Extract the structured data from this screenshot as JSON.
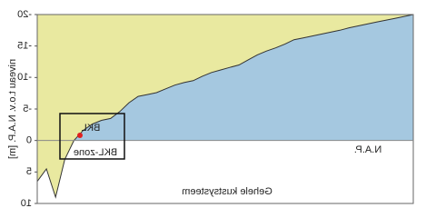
{
  "chart_data": {
    "type": "area",
    "ylabel": "niveau t.o.v. N.A.P. [m]",
    "xlabel": "Gehele kustsysteem",
    "reference_label": "N.A.P.",
    "box_label": "BKL",
    "zone_label": "BKL-zone",
    "ylim": [
      -20,
      10
    ],
    "yticks": [
      -20,
      -15,
      -10,
      -5,
      0,
      5,
      10
    ],
    "colors": {
      "above": "#e9e9a0",
      "below": "#a5c8e0"
    },
    "values": [
      -20,
      -19.7,
      -19.4,
      -19.1,
      -18.8,
      -18.5,
      -18.2,
      -17.9,
      -17.5,
      -17.2,
      -16.9,
      -16.6,
      -16.3,
      -16,
      -15.3,
      -14.7,
      -14.2,
      -13.6,
      -12.8,
      -12,
      -11.6,
      -11.2,
      -10.8,
      -10.2,
      -9.5,
      -9.2,
      -8.8,
      -8.2,
      -7.6,
      -7.3,
      -7,
      -6,
      -4.6,
      -3.5,
      -3.2,
      -2.6,
      -1.6,
      0,
      3,
      9,
      4.5,
      6.5
    ]
  }
}
